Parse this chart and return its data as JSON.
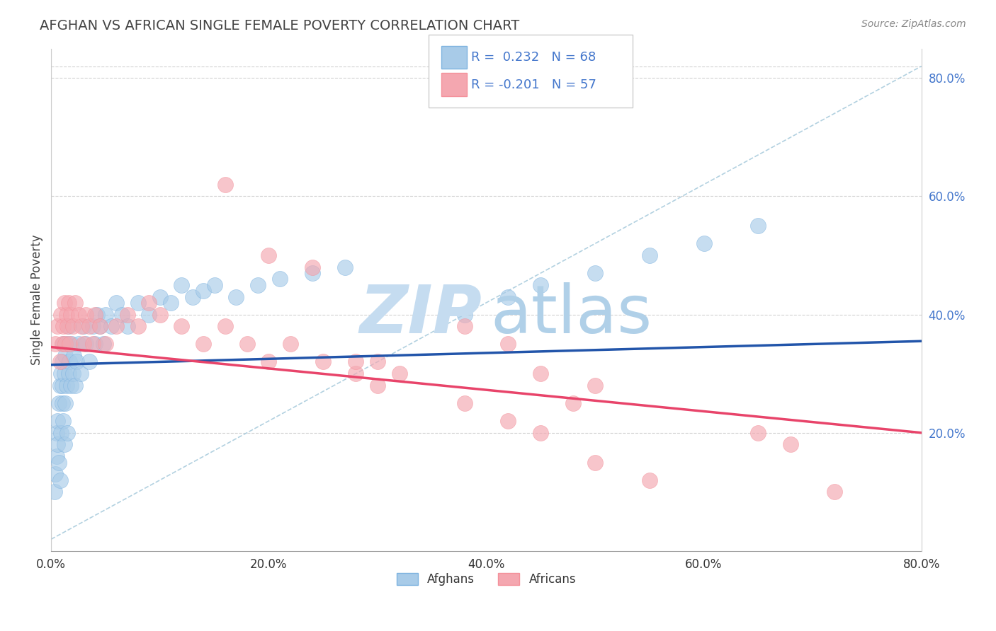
{
  "title": "AFGHAN VS AFRICAN SINGLE FEMALE POVERTY CORRELATION CHART",
  "source": "Source: ZipAtlas.com",
  "ylabel": "Single Female Poverty",
  "xlim": [
    0.0,
    0.8
  ],
  "ylim": [
    0.0,
    0.85
  ],
  "xticks": [
    0.0,
    0.2,
    0.4,
    0.6,
    0.8
  ],
  "yticks_right": [
    0.2,
    0.4,
    0.6,
    0.8
  ],
  "xtick_labels": [
    "0.0%",
    "20.0%",
    "40.0%",
    "60.0%",
    "80.0%"
  ],
  "ytick_labels_right": [
    "20.0%",
    "40.0%",
    "60.0%",
    "80.0%"
  ],
  "afghan_color": "#7EB3E0",
  "african_color": "#F4919B",
  "afghan_fill_color": "#A8CBE8",
  "african_fill_color": "#F4A7B0",
  "afghan_R": 0.232,
  "afghan_N": 68,
  "african_R": -0.201,
  "african_N": 57,
  "watermark_zip_color": "#C5DCF0",
  "watermark_atlas_color": "#B0D0E8",
  "background_color": "#ffffff",
  "grid_color": "#cccccc",
  "title_color": "#444444",
  "legend_text_color": "#4477CC",
  "afghan_line_color": "#2255AA",
  "african_line_color": "#E8446A",
  "diag_color": "#AACCDD",
  "afghan_points_x": [
    0.003,
    0.004,
    0.005,
    0.005,
    0.006,
    0.006,
    0.007,
    0.007,
    0.008,
    0.008,
    0.009,
    0.009,
    0.01,
    0.01,
    0.01,
    0.011,
    0.011,
    0.012,
    0.012,
    0.013,
    0.013,
    0.014,
    0.015,
    0.015,
    0.016,
    0.016,
    0.017,
    0.018,
    0.019,
    0.02,
    0.021,
    0.022,
    0.023,
    0.025,
    0.027,
    0.03,
    0.032,
    0.035,
    0.038,
    0.04,
    0.042,
    0.045,
    0.048,
    0.05,
    0.055,
    0.06,
    0.065,
    0.07,
    0.08,
    0.09,
    0.1,
    0.11,
    0.12,
    0.13,
    0.14,
    0.15,
    0.17,
    0.19,
    0.21,
    0.24,
    0.27,
    0.38,
    0.42,
    0.45,
    0.5,
    0.55,
    0.6,
    0.65
  ],
  "afghan_points_y": [
    0.1,
    0.13,
    0.16,
    0.2,
    0.18,
    0.22,
    0.15,
    0.25,
    0.12,
    0.28,
    0.2,
    0.3,
    0.25,
    0.28,
    0.32,
    0.22,
    0.35,
    0.18,
    0.3,
    0.25,
    0.33,
    0.28,
    0.2,
    0.35,
    0.3,
    0.38,
    0.32,
    0.28,
    0.35,
    0.3,
    0.33,
    0.28,
    0.32,
    0.35,
    0.3,
    0.38,
    0.35,
    0.32,
    0.38,
    0.35,
    0.4,
    0.38,
    0.35,
    0.4,
    0.38,
    0.42,
    0.4,
    0.38,
    0.42,
    0.4,
    0.43,
    0.42,
    0.45,
    0.43,
    0.44,
    0.45,
    0.43,
    0.45,
    0.46,
    0.47,
    0.48,
    0.4,
    0.43,
    0.45,
    0.47,
    0.5,
    0.52,
    0.55
  ],
  "african_points_x": [
    0.004,
    0.006,
    0.008,
    0.009,
    0.01,
    0.011,
    0.012,
    0.013,
    0.014,
    0.015,
    0.016,
    0.017,
    0.018,
    0.02,
    0.022,
    0.025,
    0.028,
    0.03,
    0.032,
    0.035,
    0.038,
    0.04,
    0.045,
    0.05,
    0.06,
    0.07,
    0.08,
    0.09,
    0.1,
    0.12,
    0.14,
    0.16,
    0.18,
    0.2,
    0.22,
    0.25,
    0.28,
    0.3,
    0.32,
    0.38,
    0.42,
    0.38,
    0.42,
    0.45,
    0.48,
    0.5,
    0.16,
    0.2,
    0.24,
    0.28,
    0.3,
    0.45,
    0.5,
    0.55,
    0.65,
    0.68,
    0.72
  ],
  "african_points_y": [
    0.35,
    0.38,
    0.32,
    0.4,
    0.35,
    0.38,
    0.42,
    0.35,
    0.4,
    0.38,
    0.42,
    0.35,
    0.4,
    0.38,
    0.42,
    0.4,
    0.38,
    0.35,
    0.4,
    0.38,
    0.35,
    0.4,
    0.38,
    0.35,
    0.38,
    0.4,
    0.38,
    0.42,
    0.4,
    0.38,
    0.35,
    0.38,
    0.35,
    0.32,
    0.35,
    0.32,
    0.3,
    0.32,
    0.3,
    0.25,
    0.22,
    0.38,
    0.35,
    0.3,
    0.25,
    0.28,
    0.62,
    0.5,
    0.48,
    0.32,
    0.28,
    0.2,
    0.15,
    0.12,
    0.2,
    0.18,
    0.1
  ]
}
